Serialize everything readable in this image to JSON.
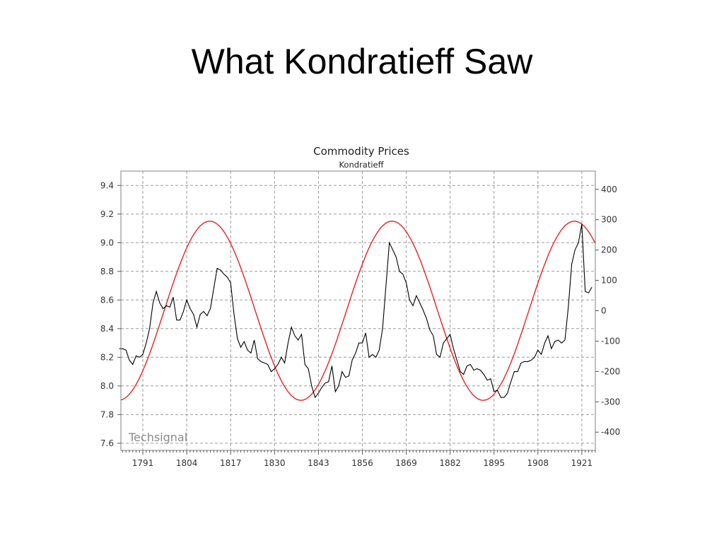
{
  "slide": {
    "title": "What Kondratieff Saw"
  },
  "chart_data": {
    "type": "line",
    "title": "Commodity Prices",
    "subtitle": "Kondratieff",
    "watermark": "Techsignal",
    "grid": true,
    "x_ticks": [
      1791,
      1804,
      1817,
      1830,
      1843,
      1856,
      1869,
      1882,
      1895,
      1908,
      1921
    ],
    "xlim": [
      1784.5,
      1925
    ],
    "ylim_left": [
      7.55,
      9.5
    ],
    "y_ticks_left": [
      7.6,
      7.8,
      8.0,
      8.2,
      8.4,
      8.6,
      8.8,
      9.0,
      9.2,
      9.4
    ],
    "ylim_right": [
      -460,
      460
    ],
    "y_ticks_right": [
      -400,
      -300,
      -200,
      -100,
      0,
      100,
      200,
      300,
      400
    ],
    "colors": {
      "price": "#000000",
      "cycle": "#e8231e",
      "grid": "#9a9a9a",
      "frame": "#808080"
    },
    "series": [
      {
        "role": "price",
        "axis": "left",
        "x": [
          1784,
          1785,
          1786,
          1787,
          1788,
          1789,
          1790,
          1791,
          1792,
          1793,
          1794,
          1795,
          1796,
          1797,
          1798,
          1799,
          1800,
          1801,
          1802,
          1803,
          1804,
          1805,
          1806,
          1807,
          1808,
          1809,
          1810,
          1811,
          1812,
          1813,
          1814,
          1815,
          1816,
          1817,
          1818,
          1819,
          1820,
          1821,
          1822,
          1823,
          1824,
          1825,
          1826,
          1827,
          1828,
          1829,
          1830,
          1831,
          1832,
          1833,
          1834,
          1835,
          1836,
          1837,
          1838,
          1839,
          1840,
          1841,
          1842,
          1843,
          1844,
          1845,
          1846,
          1847,
          1848,
          1849,
          1850,
          1851,
          1852,
          1853,
          1854,
          1855,
          1856,
          1857,
          1858,
          1859,
          1860,
          1861,
          1862,
          1863,
          1864,
          1865,
          1866,
          1867,
          1868,
          1869,
          1870,
          1871,
          1872,
          1873,
          1874,
          1875,
          1876,
          1877,
          1878,
          1879,
          1880,
          1881,
          1882,
          1883,
          1884,
          1885,
          1886,
          1887,
          1888,
          1889,
          1890,
          1891,
          1892,
          1893,
          1894,
          1895,
          1896,
          1897,
          1898,
          1899,
          1900,
          1901,
          1902,
          1903,
          1904,
          1905,
          1906,
          1907,
          1908,
          1909,
          1910,
          1911,
          1912,
          1913,
          1914,
          1915,
          1916,
          1917,
          1918,
          1919,
          1920,
          1921,
          1922,
          1923,
          1924
        ],
        "y": [
          8.26,
          8.26,
          8.25,
          8.18,
          8.15,
          8.21,
          8.2,
          8.22,
          8.3,
          8.4,
          8.58,
          8.66,
          8.58,
          8.54,
          8.56,
          8.55,
          8.62,
          8.46,
          8.46,
          8.52,
          8.6,
          8.54,
          8.5,
          8.41,
          8.5,
          8.52,
          8.49,
          8.54,
          8.68,
          8.82,
          8.81,
          8.78,
          8.76,
          8.72,
          8.5,
          8.33,
          8.27,
          8.31,
          8.25,
          8.23,
          8.32,
          8.19,
          8.17,
          8.16,
          8.15,
          8.1,
          8.12,
          8.15,
          8.2,
          8.16,
          8.3,
          8.41,
          8.35,
          8.32,
          8.36,
          8.15,
          8.12,
          8.0,
          7.92,
          7.95,
          7.99,
          8.02,
          8.03,
          8.14,
          7.96,
          8.0,
          8.1,
          8.06,
          8.07,
          8.18,
          8.23,
          8.3,
          8.3,
          8.37,
          8.2,
          8.22,
          8.2,
          8.25,
          8.4,
          8.7,
          9.0,
          8.95,
          8.9,
          8.8,
          8.78,
          8.72,
          8.6,
          8.56,
          8.63,
          8.58,
          8.53,
          8.47,
          8.39,
          8.35,
          8.22,
          8.2,
          8.3,
          8.33,
          8.36,
          8.26,
          8.18,
          8.1,
          8.08,
          8.14,
          8.15,
          8.11,
          8.12,
          8.11,
          8.08,
          8.04,
          8.05,
          7.96,
          7.97,
          7.92,
          7.92,
          7.95,
          8.03,
          8.1,
          8.1,
          8.16,
          8.17,
          8.17,
          8.18,
          8.2,
          8.25,
          8.22,
          8.3,
          8.35,
          8.26,
          8.31,
          8.32,
          8.3,
          8.32,
          8.55,
          8.85,
          8.95,
          9.0,
          9.13,
          8.66,
          8.65,
          8.69
        ]
      },
      {
        "role": "cycle",
        "axis": "right",
        "description": "sine wave, amplitude 295, period 54 years, peak near 1810",
        "amplitude": 295,
        "period_years": 54,
        "peak_year": 1810.8
      }
    ]
  }
}
